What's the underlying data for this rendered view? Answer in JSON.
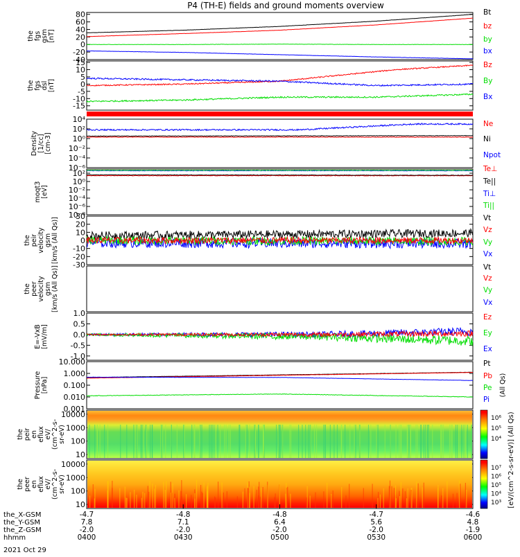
{
  "title": "P4 (TH-E) fields and ground moments overview",
  "date_label": "2021 Oct 29",
  "colors": {
    "black": "#000000",
    "red": "#ff0000",
    "green": "#00dd00",
    "blue": "#0000ff"
  },
  "chart_data": [
    {
      "type": "line",
      "panel": "fgs_gsm",
      "ylabel": [
        "the",
        "fgs",
        "gsm",
        "[nT]"
      ],
      "ylim": [
        -40,
        85
      ],
      "yticks": [
        "80",
        "60",
        "40",
        "20",
        "0",
        "-20",
        "-40"
      ],
      "ytick_values": [
        80,
        60,
        40,
        20,
        0,
        -20,
        -40
      ],
      "legend": [
        "Bt",
        "bz",
        "by",
        "bx"
      ],
      "series": [
        {
          "name": "Bt",
          "color": "black",
          "x": [
            0,
            0.25,
            0.5,
            0.75,
            1
          ],
          "values": [
            31,
            38,
            48,
            62,
            80
          ],
          "noise": 0.3
        },
        {
          "name": "bz",
          "color": "red",
          "x": [
            0,
            0.25,
            0.5,
            0.75,
            1
          ],
          "values": [
            21,
            29,
            38,
            52,
            70
          ],
          "noise": 0.3
        },
        {
          "name": "by",
          "color": "green",
          "x": [
            0,
            0.25,
            0.5,
            0.75,
            1
          ],
          "values": [
            0,
            0,
            1,
            0,
            0
          ],
          "noise": 0.4
        },
        {
          "name": "bx",
          "color": "blue",
          "x": [
            0,
            0.25,
            0.5,
            0.75,
            1
          ],
          "values": [
            -17,
            -21,
            -27,
            -33,
            -38
          ],
          "noise": 0.3
        }
      ]
    },
    {
      "type": "line",
      "panel": "fgs_dsl",
      "ylabel": [
        "the",
        "fgs",
        "dsl",
        "[nT]"
      ],
      "ylim": [
        -18,
        16
      ],
      "yticks": [
        "15",
        "10",
        "5",
        "0",
        "-5",
        "-10",
        "-15"
      ],
      "ytick_values": [
        15,
        10,
        5,
        0,
        -5,
        -10,
        -15
      ],
      "legend": [
        "Bz",
        "By",
        "Bx"
      ],
      "series": [
        {
          "name": "Bz",
          "color": "red",
          "x": [
            0,
            0.25,
            0.5,
            0.65,
            0.8,
            1
          ],
          "values": [
            -1,
            0,
            2,
            6,
            10,
            13
          ],
          "noise": 0.4
        },
        {
          "name": "By",
          "color": "green",
          "x": [
            0,
            0.25,
            0.5,
            0.75,
            1
          ],
          "values": [
            -12,
            -11,
            -9,
            -9,
            -7
          ],
          "noise": 0.5
        },
        {
          "name": "Bx",
          "color": "blue",
          "x": [
            0,
            0.25,
            0.5,
            0.75,
            1
          ],
          "values": [
            4,
            3,
            2,
            -1,
            0
          ],
          "noise": 0.5
        }
      ]
    },
    {
      "type": "line",
      "panel": "density",
      "ylabel": [
        "Density",
        "[1/cc]",
        "[cm-3]"
      ],
      "yscale": "log",
      "ylim": [
        -6,
        4
      ],
      "yticks": [
        "10⁴",
        "10²",
        "10⁰",
        "10⁻²",
        "10⁻⁴",
        "10⁻⁶"
      ],
      "ytick_values": [
        4,
        2,
        0,
        -2,
        -4,
        -6
      ],
      "legend": [
        "Ne",
        "Ni",
        "Npot"
      ],
      "series": [
        {
          "name": "Ne",
          "color": "red",
          "x": [
            0,
            1
          ],
          "values": [
            0.3,
            0.3
          ],
          "noise": 0.05
        },
        {
          "name": "Ni",
          "color": "black",
          "x": [
            0,
            1
          ],
          "values": [
            0.5,
            0.6
          ],
          "noise": 0.05
        },
        {
          "name": "Npot",
          "color": "blue",
          "x": [
            0,
            0.55,
            0.7,
            0.85,
            1
          ],
          "values": [
            1.8,
            1.8,
            2.4,
            3.0,
            3.0
          ],
          "noise": 0.15
        }
      ]
    },
    {
      "type": "line",
      "panel": "temperature",
      "ylabel": [
        "moqt3",
        "[eV]"
      ],
      "yscale": "log",
      "ylim": [
        -8,
        3
      ],
      "yticks": [
        "10²",
        "10⁰",
        "10⁻²",
        "10⁻⁴",
        "10⁻⁶",
        "10⁻⁸"
      ],
      "ytick_values": [
        2,
        0,
        -2,
        -4,
        -6,
        -8
      ],
      "legend": [
        "Te⊥",
        "Te||",
        "Ti⊥",
        "Ti||"
      ],
      "series": [
        {
          "name": "Te⊥",
          "color": "red",
          "x": [
            0,
            1
          ],
          "values": [
            1.4,
            1.4
          ],
          "noise": 0.06
        },
        {
          "name": "Te||",
          "color": "black",
          "x": [
            0,
            1
          ],
          "values": [
            1.6,
            1.5
          ],
          "noise": 0.06
        },
        {
          "name": "Ti⊥",
          "color": "blue",
          "x": [
            0,
            1
          ],
          "values": [
            2.6,
            2.6
          ],
          "noise": 0.05
        },
        {
          "name": "Ti||",
          "color": "green",
          "x": [
            0,
            1
          ],
          "values": [
            2.7,
            2.7
          ],
          "noise": 0.05
        }
      ]
    },
    {
      "type": "line",
      "panel": "peir_velocity",
      "ylabel": [
        "the",
        "peir",
        "velocity",
        "gsm",
        "[km/s (All Qs)]"
      ],
      "ylim": [
        -30,
        30
      ],
      "yticks": [
        "30",
        "20",
        "10",
        "0",
        "-10",
        "-20",
        "-30"
      ],
      "ytick_values": [
        30,
        20,
        10,
        0,
        -10,
        -20,
        -30
      ],
      "legend": [
        "Vt",
        "Vz",
        "Vy",
        "Vx"
      ],
      "series": [
        {
          "name": "Vt",
          "color": "black",
          "x": [
            0,
            1
          ],
          "values": [
            6,
            9
          ],
          "noise": 5
        },
        {
          "name": "Vx",
          "color": "blue",
          "x": [
            0,
            1
          ],
          "values": [
            -3,
            -4
          ],
          "noise": 6
        },
        {
          "name": "Vy",
          "color": "green",
          "x": [
            0,
            1
          ],
          "values": [
            0,
            -1
          ],
          "noise": 5
        },
        {
          "name": "Vz",
          "color": "red",
          "x": [
            0,
            1
          ],
          "values": [
            0,
            0
          ],
          "noise": 4
        }
      ]
    },
    {
      "type": "line",
      "panel": "peer_velocity",
      "ylabel": [
        "the",
        "peer",
        "velocity",
        "gsm",
        "[km/s (All Qs)]"
      ],
      "ylim": [
        -1,
        1
      ],
      "yticks": [],
      "ytick_values": [],
      "legend": [
        "Vt",
        "Vz",
        "Vy",
        "Vx"
      ],
      "series": []
    },
    {
      "type": "line",
      "panel": "efield",
      "ylabel": [
        "E=-VxB",
        "[mV/m]"
      ],
      "ylim": [
        -1.2,
        1.0
      ],
      "yticks": [
        "1.0",
        "0.5",
        "0.0",
        "-0.5",
        "-1.0"
      ],
      "ytick_values": [
        1.0,
        0.5,
        0.0,
        -0.5,
        -1.0
      ],
      "legend": [
        "Ez",
        "Ey",
        "Ex"
      ],
      "series": [
        {
          "name": "Ex",
          "color": "blue",
          "x": [
            0,
            0.6,
            1
          ],
          "values": [
            0,
            0,
            0.15
          ],
          "noise": 0.1
        },
        {
          "name": "Ey",
          "color": "green",
          "x": [
            0,
            0.6,
            1
          ],
          "values": [
            0,
            -0.1,
            -0.3
          ],
          "noise": 0.12
        },
        {
          "name": "Ez",
          "color": "red",
          "x": [
            0,
            0.6,
            1
          ],
          "values": [
            0,
            0,
            0.05
          ],
          "noise": 0.07
        }
      ]
    },
    {
      "type": "line",
      "panel": "pressure",
      "ylabel": [
        "Pressure",
        "[nPa]"
      ],
      "yscale": "log",
      "ylim": [
        -3,
        1
      ],
      "yticks": [
        "10.000",
        "1.000",
        "0.100",
        "0.010",
        "0.001"
      ],
      "ytick_values": [
        1,
        0,
        -1,
        -2,
        -3
      ],
      "legend": [
        "Pt",
        "Pb",
        "Pe",
        "Pi"
      ],
      "series": [
        {
          "name": "Pt",
          "color": "black",
          "x": [
            0,
            1
          ],
          "values": [
            -0.35,
            0.1
          ],
          "noise": 0.01
        },
        {
          "name": "Pb",
          "color": "red",
          "x": [
            0,
            1
          ],
          "values": [
            -0.4,
            0.08
          ],
          "noise": 0.01
        },
        {
          "name": "Pi",
          "color": "blue",
          "x": [
            0,
            0.5,
            1
          ],
          "values": [
            -0.32,
            -0.34,
            -0.6
          ],
          "noise": 0.01
        },
        {
          "name": "Pe",
          "color": "green",
          "x": [
            0,
            0.5,
            1
          ],
          "values": [
            -1.9,
            -1.75,
            -2.0
          ],
          "noise": 0.02
        }
      ]
    },
    {
      "type": "heatmap",
      "panel": "peir_eflux",
      "ylabel": [
        "the",
        "peir",
        "en",
        "eflux",
        "eV/",
        "(cm^2-s-",
        "sr-eV)"
      ],
      "yscale": "log",
      "ylim": [
        5,
        20000
      ],
      "yticks": [
        "10000",
        "1000",
        "100",
        "10"
      ],
      "ytick_values": [
        10000,
        1000,
        100,
        10
      ],
      "colorbar_label": "[eV/(cm^2-s-sr-eV)] (All Qs)",
      "colorbar_ticks": [
        "10⁶",
        "10⁵",
        "10⁴"
      ]
    },
    {
      "type": "heatmap",
      "panel": "peer_eflux",
      "ylabel": [
        "the",
        "peer",
        "en",
        "eflux",
        "eV/",
        "(cm^2-s-",
        "sr-eV)"
      ],
      "yscale": "log",
      "ylim": [
        5,
        20000
      ],
      "yticks": [
        "10000",
        "1000",
        "100",
        "10"
      ],
      "ytick_values": [
        10000,
        1000,
        100,
        10
      ],
      "colorbar_label": "[eV/(cm^2-s-sr-eV)] (All Qs)",
      "colorbar_ticks": [
        "10⁷",
        "10⁶",
        "10⁵",
        "10⁴",
        "10³"
      ]
    }
  ],
  "x_axis": {
    "rows": [
      {
        "label": "the_X-GSM",
        "values": [
          "-4.7",
          "-4.8",
          "-4.8",
          "-4.7",
          "-4.6"
        ]
      },
      {
        "label": "the_Y-GSM",
        "values": [
          "7.8",
          "7.1",
          "6.4",
          "5.6",
          "4.8"
        ]
      },
      {
        "label": "the_Z-GSM",
        "values": [
          "-2.0",
          "-2.0",
          "-2.0",
          "-2.0",
          "-1.9"
        ]
      },
      {
        "label": "hhmm",
        "values": [
          "0400",
          "0430",
          "0500",
          "0530",
          "0600"
        ]
      }
    ],
    "tick_fractions": [
      0,
      0.25,
      0.5,
      0.75,
      1
    ]
  }
}
